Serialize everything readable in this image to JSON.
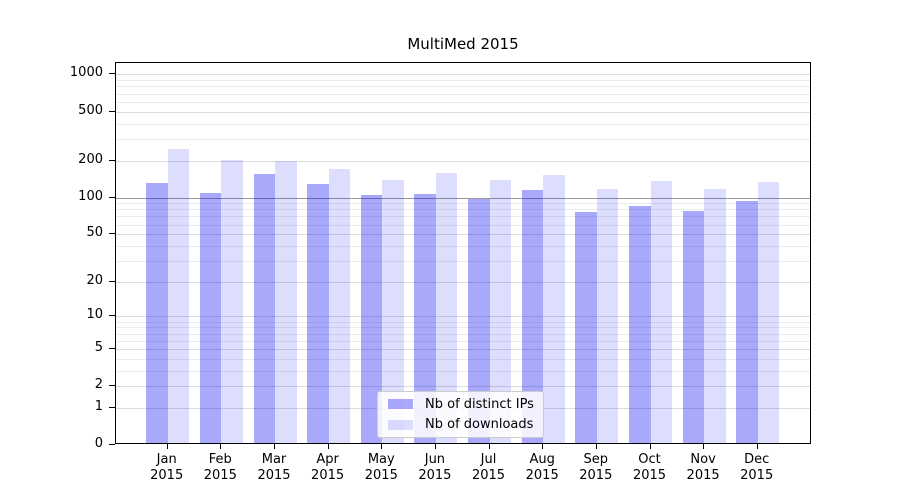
{
  "chart_data": {
    "type": "bar",
    "title": "MultiMed 2015",
    "y_scale": "log1p",
    "ylim": [
      0,
      1250
    ],
    "grid": true,
    "y_ticks": [
      0,
      1,
      2,
      5,
      10,
      20,
      50,
      100,
      200,
      500,
      1000
    ],
    "reference_line_value": 100,
    "x_labels": [
      {
        "month": "Jan",
        "year": "2015"
      },
      {
        "month": "Feb",
        "year": "2015"
      },
      {
        "month": "Mar",
        "year": "2015"
      },
      {
        "month": "Apr",
        "year": "2015"
      },
      {
        "month": "May",
        "year": "2015"
      },
      {
        "month": "Jun",
        "year": "2015"
      },
      {
        "month": "Jul",
        "year": "2015"
      },
      {
        "month": "Aug",
        "year": "2015"
      },
      {
        "month": "Sep",
        "year": "2015"
      },
      {
        "month": "Oct",
        "year": "2015"
      },
      {
        "month": "Nov",
        "year": "2015"
      },
      {
        "month": "Dec",
        "year": "2015"
      }
    ],
    "series": [
      {
        "key": "ips",
        "name": "Nb of distinct IPs",
        "color": "rgba(10,10,245,0.35)",
        "values": [
          126,
          104,
          149,
          125,
          101,
          102,
          94,
          111,
          73,
          82,
          75,
          90
        ]
      },
      {
        "key": "downloads",
        "name": "Nb of downloads",
        "color": "rgba(12,12,245,0.14)",
        "values": [
          240,
          196,
          190,
          166,
          135,
          152,
          133,
          146,
          113,
          131,
          113,
          130
        ]
      }
    ],
    "legend_position": "bottom-center",
    "colors": {
      "grid_minor": "#ececec",
      "grid_major": "#dcdcdc",
      "grid_reference": "#999999",
      "axis": "#000000",
      "background": "#ffffff"
    }
  }
}
